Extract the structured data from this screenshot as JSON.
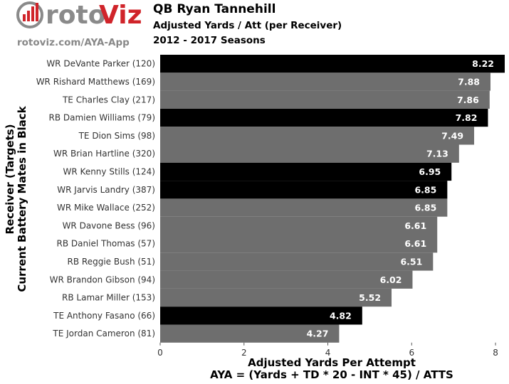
{
  "header": {
    "title": "QB Ryan Tannehill",
    "subtitle": "Adjusted Yards / Att (per Receiver)",
    "subtitle2": "2012 - 2017 Seasons",
    "site_url": "rotoviz.com/AYA-App",
    "logo_text_a": "roto",
    "logo_text_b": "Viz"
  },
  "colors": {
    "current": "#000000",
    "former": "#6e6e6e",
    "logo_grey": "#8a8a8a",
    "logo_red": "#d0242a"
  },
  "chart_data": {
    "type": "bar",
    "orientation": "horizontal",
    "xlabel": "Adjusted Yards Per Attempt",
    "xlabel2": "AYA = (Yards + TD * 20 - INT * 45) / ATTS",
    "ylabel": "Receiver (Targets)",
    "ylabel2": "Current Battery Mates in Black",
    "xlim": [
      0,
      8.22
    ],
    "xticks": [
      0,
      2,
      4,
      6,
      8
    ],
    "grid": false,
    "categories": [
      "WR DeVante Parker (120)",
      "WR Rishard Matthews (169)",
      "TE Charles Clay (217)",
      "RB Damien Williams (79)",
      "TE Dion Sims (98)",
      "WR Brian Hartline (320)",
      "WR Kenny Stills (124)",
      "WR Jarvis Landry (387)",
      "WR Mike Wallace (252)",
      "WR Davone Bess (96)",
      "RB Daniel Thomas (57)",
      "RB Reggie Bush (51)",
      "WR Brandon Gibson (94)",
      "RB Lamar Miller (153)",
      "TE Anthony Fasano (66)",
      "TE Jordan Cameron (81)"
    ],
    "values": [
      8.22,
      7.88,
      7.86,
      7.82,
      7.49,
      7.13,
      6.95,
      6.85,
      6.85,
      6.61,
      6.61,
      6.51,
      6.02,
      5.52,
      4.82,
      4.27
    ],
    "value_labels": [
      "8.22",
      "7.88",
      "7.86",
      "7.82",
      "7.49",
      "7.13",
      "6.95",
      "6.85",
      "6.85",
      "6.61",
      "6.61",
      "6.51",
      "6.02",
      "5.52",
      "4.82",
      "4.27"
    ],
    "current": [
      true,
      false,
      false,
      true,
      false,
      false,
      true,
      true,
      false,
      false,
      false,
      false,
      false,
      false,
      true,
      false
    ]
  }
}
